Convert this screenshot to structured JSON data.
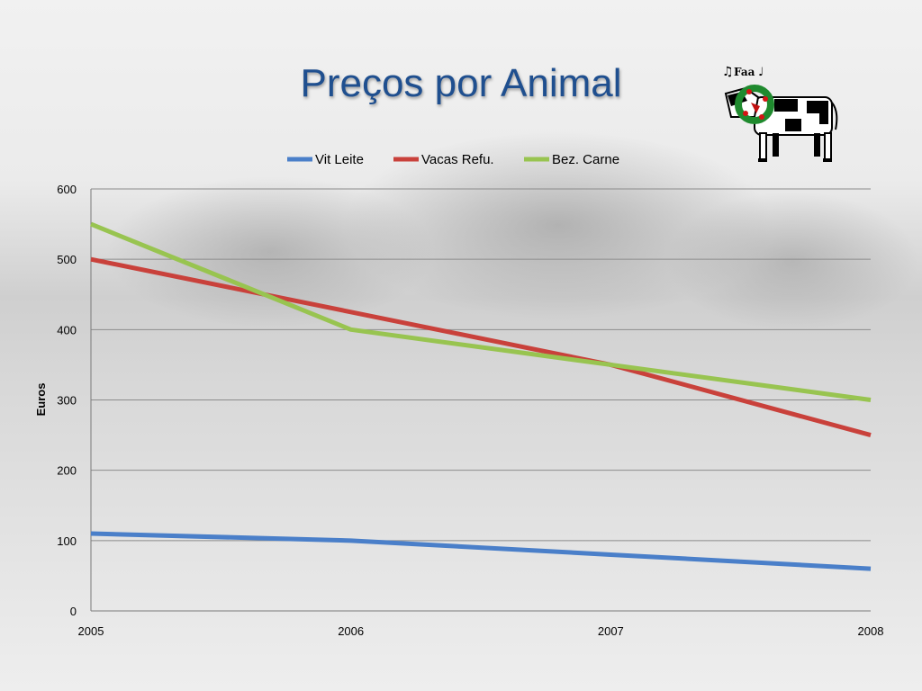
{
  "slide": {
    "title": "Preços por Animal",
    "logo_text": "Faa",
    "logo_icon": "cow-with-wreath-icon"
  },
  "chart_data": {
    "type": "line",
    "title": "",
    "xlabel": "",
    "ylabel": "Euros",
    "x": [
      "2005",
      "2006",
      "2007",
      "2008"
    ],
    "ylim": [
      0,
      600
    ],
    "yticks": [
      0,
      100,
      200,
      300,
      400,
      500,
      600
    ],
    "grid": true,
    "legend_position": "top",
    "series": [
      {
        "name": "Vit Leite",
        "color": "#4a7fc9",
        "values": [
          110,
          100,
          80,
          60
        ]
      },
      {
        "name": "Vacas Refu.",
        "color": "#c9413b",
        "values": [
          500,
          425,
          350,
          250
        ]
      },
      {
        "name": "Bez. Carne",
        "color": "#98c450",
        "values": [
          550,
          400,
          350,
          300
        ]
      }
    ]
  }
}
